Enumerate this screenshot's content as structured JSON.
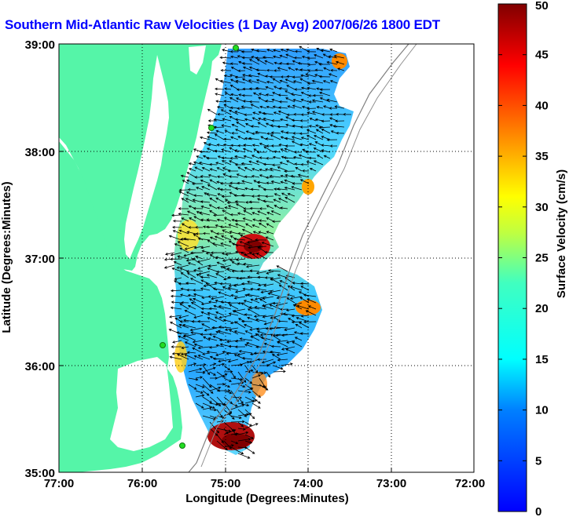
{
  "title": "Southern Mid-Atlantic Raw Velocities (1 Day Avg) 2007/06/26 1800 EDT",
  "map": {
    "xlabel": "Longitude (Degrees:Minutes)",
    "ylabel": "Latitude (Degrees:Minutes)",
    "x_ticks": [
      "77:00",
      "76:00",
      "75:00",
      "74:00",
      "73:00",
      "72:00"
    ],
    "y_ticks": [
      "39:00",
      "38:00",
      "37:00",
      "36:00",
      "35:00"
    ],
    "x_range": [
      -77,
      -72
    ],
    "y_range": [
      35,
      39
    ],
    "land_color": "#55f5a8",
    "grid": "dotted"
  },
  "colorbar": {
    "label": "Surface Velocity (cm/s)",
    "ticks": [
      "0",
      "5",
      "10",
      "15",
      "20",
      "25",
      "30",
      "35",
      "40",
      "45",
      "50"
    ],
    "range": [
      0,
      50
    ],
    "colormap": "jet"
  }
}
